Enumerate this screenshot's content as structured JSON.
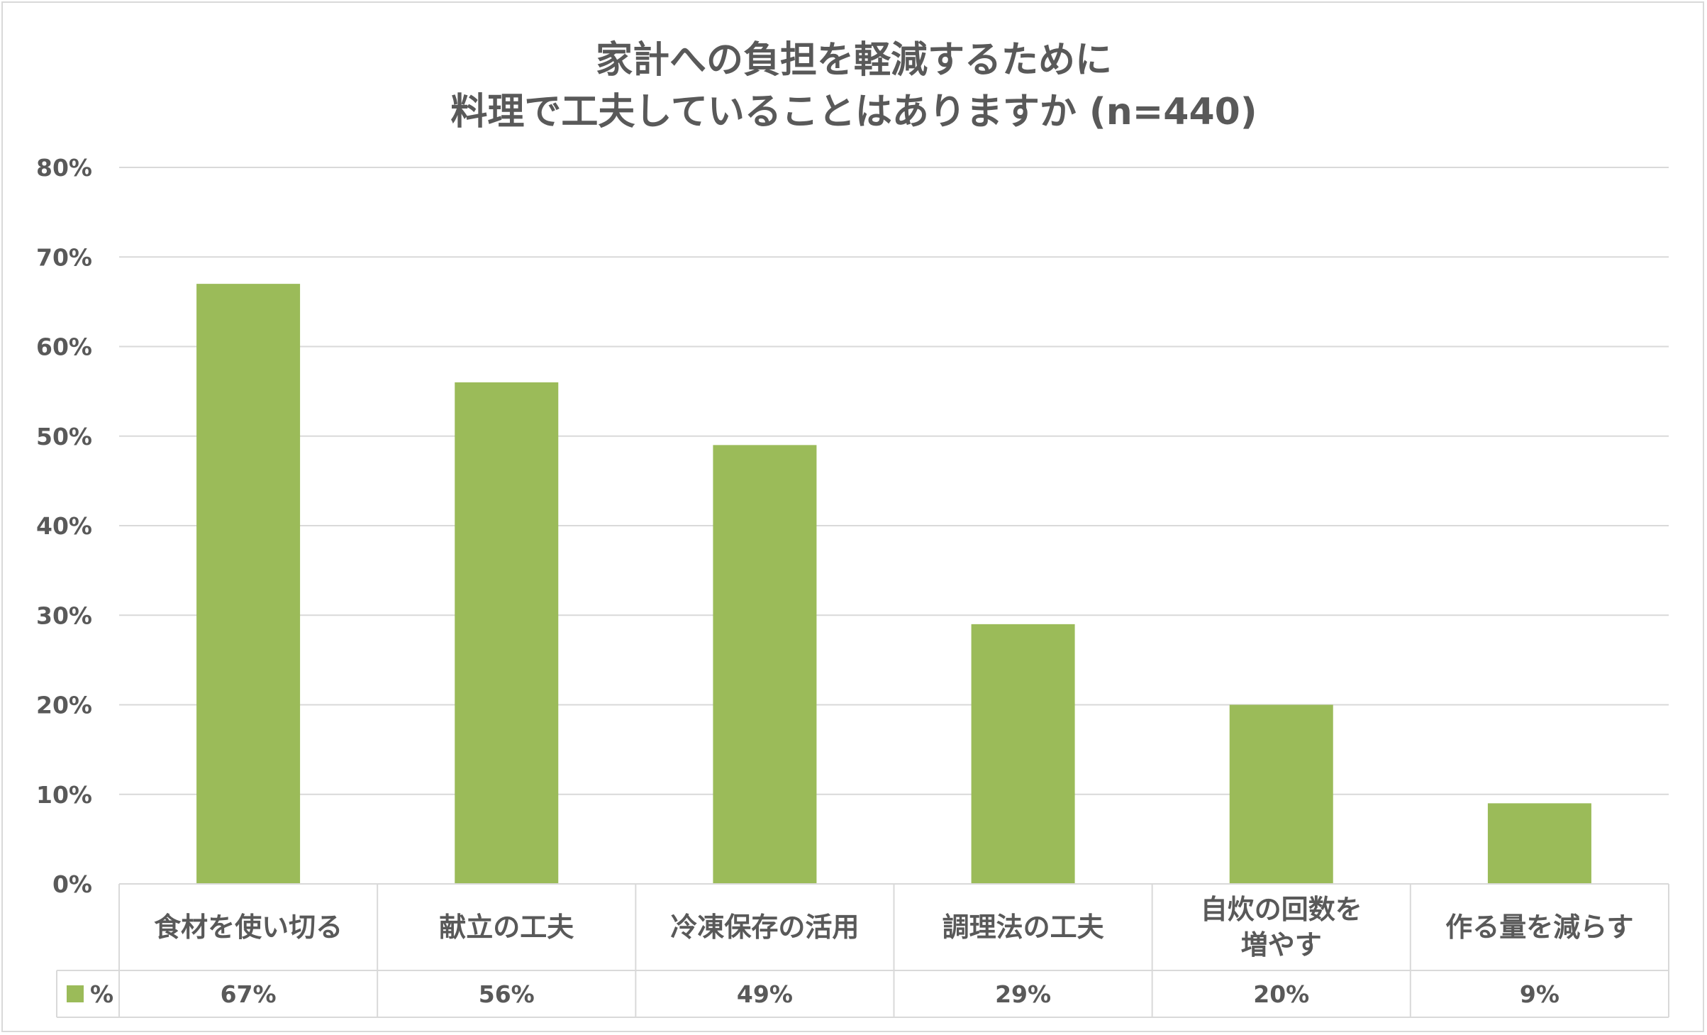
{
  "colors": {
    "bar": "#9bbb59",
    "grid": "#d9d9d9",
    "text": "#595959"
  },
  "chart_data": {
    "type": "bar",
    "title": [
      "家計への負担を軽減するために",
      "料理で工夫していることはありますか (n=440)"
    ],
    "categories": [
      [
        "食材を使い切る"
      ],
      [
        "献立の工夫"
      ],
      [
        "冷凍保存の活用"
      ],
      [
        "調理法の工夫"
      ],
      [
        "自炊の回数を",
        "増やす"
      ],
      [
        "作る量を減らす"
      ]
    ],
    "series": [
      {
        "name": "%",
        "values": [
          67,
          56,
          49,
          29,
          20,
          9
        ],
        "labels": [
          "67%",
          "56%",
          "49%",
          "29%",
          "20%",
          "9%"
        ]
      }
    ],
    "ylim": [
      0,
      80
    ],
    "yticks": [
      0,
      10,
      20,
      30,
      40,
      50,
      60,
      70,
      80
    ],
    "ytick_labels": [
      "0%",
      "10%",
      "20%",
      "30%",
      "40%",
      "50%",
      "60%",
      "70%",
      "80%"
    ],
    "grid": true,
    "legend": "data-table",
    "xlabel": "",
    "ylabel": ""
  }
}
